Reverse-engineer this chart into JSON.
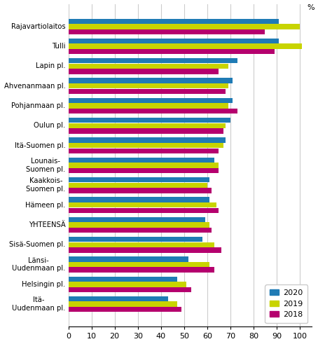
{
  "categories": [
    "Rajavartiolaitos",
    "Tulli",
    "Lapin pl.",
    "Ahvenanmaan pl.",
    "Pohjanmaan pl.",
    "Oulun pl.",
    "Itä-Suomen pl.",
    "Lounais-\nSuomen pl.",
    "Kaakkois-\nSuomen pl.",
    "Hämeen pl.",
    "YHTEENSÄ",
    "Sisä-Suomen pl.",
    "Länsi-\nUudenmaan pl.",
    "Helsingin pl.",
    "Itä-\nUudenmaan pl."
  ],
  "values_2020": [
    91,
    91,
    73,
    71,
    71,
    70,
    68,
    63,
    61,
    61,
    59,
    58,
    52,
    47,
    43
  ],
  "values_2019": [
    100,
    101,
    69,
    69,
    69,
    68,
    67,
    65,
    60,
    64,
    61,
    63,
    61,
    51,
    47
  ],
  "values_2018": [
    85,
    89,
    65,
    68,
    73,
    67,
    65,
    65,
    62,
    65,
    62,
    66,
    63,
    53,
    49
  ],
  "color_2020": "#1f7bb5",
  "color_2019": "#c8d400",
  "color_2018": "#b5006e",
  "xlim": [
    0,
    105
  ],
  "xticks": [
    0,
    10,
    20,
    30,
    40,
    50,
    60,
    70,
    80,
    90,
    100
  ],
  "bar_height": 0.26,
  "figsize": [
    4.54,
    4.91
  ],
  "dpi": 100,
  "grid_color": "#cccccc"
}
